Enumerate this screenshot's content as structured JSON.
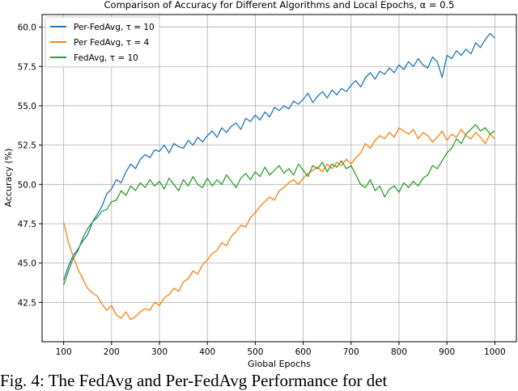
{
  "chart_data": {
    "type": "line",
    "title": "Comparison of Accuracy for Different Algorithms and Local Epochs, α = 0.5",
    "xlabel": "Global Epochs",
    "ylabel": "Accuracy (%)",
    "xlim": [
      55,
      1045
    ],
    "ylim": [
      40.0,
      60.8
    ],
    "xticks": [
      100,
      200,
      300,
      400,
      500,
      600,
      700,
      800,
      900,
      1000
    ],
    "yticks": [
      42.5,
      45.0,
      47.5,
      50.0,
      52.5,
      55.0,
      57.5,
      60.0
    ],
    "grid": true,
    "legend_position": "top-left",
    "x_start": 100,
    "x_step": 10,
    "series": [
      {
        "name": "Per-FedAvg, τ = 10",
        "color": "#1f77b4",
        "values": [
          43.9,
          44.8,
          45.5,
          45.9,
          46.4,
          46.8,
          47.6,
          48.1,
          48.6,
          49.4,
          49.7,
          50.3,
          50.1,
          50.8,
          51.3,
          51.0,
          51.6,
          51.9,
          51.7,
          52.2,
          52.1,
          52.5,
          52.0,
          52.6,
          52.4,
          52.3,
          52.8,
          52.5,
          53.0,
          52.7,
          53.1,
          53.4,
          53.0,
          53.6,
          53.3,
          53.7,
          53.9,
          53.5,
          54.2,
          54.0,
          54.4,
          54.1,
          54.6,
          54.3,
          54.9,
          54.7,
          55.0,
          54.8,
          55.3,
          55.1,
          55.4,
          55.8,
          55.2,
          55.6,
          55.9,
          55.5,
          56.0,
          55.7,
          56.1,
          55.9,
          56.3,
          56.6,
          56.2,
          56.8,
          57.1,
          56.7,
          57.2,
          57.0,
          57.4,
          57.1,
          57.6,
          57.3,
          57.8,
          57.5,
          58.0,
          57.6,
          57.4,
          58.1,
          57.8,
          56.8,
          58.2,
          58.0,
          58.5,
          58.2,
          58.6,
          58.3,
          59.0,
          58.7,
          59.2,
          59.6,
          59.3
        ]
      },
      {
        "name": "Per FedAvg, τ = 4",
        "color": "#ff7f0e",
        "values": [
          47.6,
          46.3,
          45.4,
          44.6,
          44.0,
          43.4,
          43.1,
          42.9,
          42.4,
          42.0,
          42.3,
          41.7,
          41.5,
          41.9,
          41.4,
          41.6,
          41.9,
          42.1,
          42.0,
          42.5,
          42.3,
          42.8,
          43.0,
          43.4,
          43.2,
          43.8,
          44.0,
          44.5,
          44.3,
          44.9,
          45.2,
          45.6,
          45.8,
          46.3,
          46.1,
          46.7,
          47.0,
          47.4,
          47.3,
          47.9,
          48.2,
          48.6,
          48.9,
          49.2,
          49.0,
          49.6,
          49.8,
          50.1,
          50.3,
          50.0,
          50.4,
          50.7,
          50.9,
          51.1,
          50.8,
          51.3,
          51.0,
          51.4,
          51.2,
          51.6,
          51.3,
          51.7,
          52.0,
          52.6,
          52.3,
          52.8,
          53.1,
          52.9,
          53.3,
          53.0,
          53.6,
          53.4,
          53.2,
          53.5,
          52.9,
          53.3,
          53.1,
          52.7,
          53.0,
          53.4,
          52.8,
          53.2,
          53.0,
          53.5,
          53.1,
          52.9,
          53.3,
          53.0,
          52.6,
          53.2,
          52.9
        ]
      },
      {
        "name": "FedAvg, τ = 10",
        "color": "#2ca02c",
        "values": [
          43.6,
          44.5,
          45.3,
          45.8,
          46.6,
          47.2,
          47.6,
          47.9,
          48.3,
          48.4,
          48.9,
          49.0,
          49.6,
          49.3,
          49.9,
          49.6,
          50.1,
          49.8,
          50.3,
          49.9,
          50.2,
          49.7,
          50.4,
          50.0,
          49.6,
          50.3,
          49.9,
          50.5,
          50.0,
          49.8,
          50.4,
          49.9,
          50.3,
          50.0,
          50.6,
          50.2,
          49.8,
          50.4,
          50.7,
          50.3,
          50.8,
          50.5,
          51.1,
          50.6,
          50.9,
          51.2,
          50.7,
          51.0,
          50.6,
          51.3,
          50.9,
          50.5,
          51.2,
          51.0,
          51.4,
          50.8,
          51.3,
          51.1,
          51.5,
          51.0,
          51.2,
          50.6,
          50.0,
          49.8,
          50.3,
          49.6,
          49.9,
          49.2,
          49.7,
          49.9,
          49.5,
          50.1,
          49.8,
          50.2,
          49.9,
          50.4,
          50.6,
          51.2,
          51.0,
          51.5,
          52.0,
          52.3,
          52.9,
          52.6,
          53.2,
          53.5,
          53.8,
          53.4,
          53.6,
          53.2,
          53.4
        ]
      }
    ]
  },
  "caption": "Fig. 4: The FedAvg and Per-FedAvg Performance for det"
}
